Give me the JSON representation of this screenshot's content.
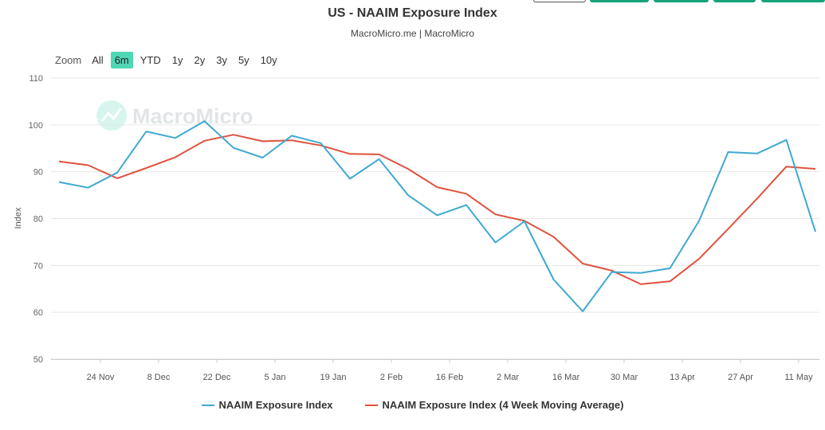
{
  "header": {
    "title": "US - NAAIM Exposure Index",
    "subtitle": "MacroMicro.me | MacroMicro"
  },
  "watermark": "MacroMicro",
  "range_selector": {
    "zoom_label": "Zoom",
    "buttons": [
      "All",
      "6m",
      "YTD",
      "1y",
      "2y",
      "3y",
      "5y",
      "10y"
    ],
    "active": "6m"
  },
  "colors": {
    "series1": "#3ea9d1",
    "series2": "#e0523e",
    "accent": "#4fd6b4",
    "grid": "#e6e6e6"
  },
  "chart_data": {
    "type": "line",
    "title": "US - NAAIM Exposure Index",
    "subtitle": "MacroMicro.me | MacroMicro",
    "ylabel": "Index",
    "xlabel": "",
    "ylim": [
      50,
      110
    ],
    "yticks": [
      50,
      60,
      70,
      80,
      90,
      100,
      110
    ],
    "x_ticks": [
      "24 Nov",
      "8 Dec",
      "22 Dec",
      "5 Jan",
      "19 Jan",
      "2 Feb",
      "16 Feb",
      "2 Mar",
      "16 Mar",
      "30 Mar",
      "13 Apr",
      "27 Apr",
      "11 May"
    ],
    "grid": true,
    "legend_position": "bottom",
    "x": [
      "Nov 10",
      "Nov 17",
      "Nov 24",
      "Dec 1",
      "Dec 8",
      "Dec 15",
      "Dec 22",
      "Dec 29",
      "Jan 5",
      "Jan 12",
      "Jan 19",
      "Jan 26",
      "Feb 2",
      "Feb 9",
      "Feb 16",
      "Feb 23",
      "Mar 2",
      "Mar 9",
      "Mar 16",
      "Mar 23",
      "Mar 30",
      "Apr 6",
      "Apr 13",
      "Apr 20",
      "Apr 27",
      "May 4",
      "May 11"
    ],
    "series": [
      {
        "name": "NAAIM Exposure Index",
        "values": [
          87.8,
          86.6,
          89.8,
          98.6,
          97.2,
          100.8,
          95.1,
          93.0,
          97.7,
          96.1,
          88.5,
          92.7,
          85.0,
          80.7,
          82.9,
          74.9,
          79.4,
          67.0,
          60.2,
          68.6,
          68.4,
          69.4,
          79.5,
          94.2,
          93.9,
          96.8,
          77.2
        ]
      },
      {
        "name": "NAAIM Exposure Index (4 Week Moving Average)",
        "values": [
          92.2,
          91.4,
          88.6,
          90.8,
          93.1,
          96.6,
          97.9,
          96.5,
          96.7,
          95.6,
          93.8,
          93.7,
          90.6,
          86.7,
          85.3,
          80.9,
          79.5,
          76.1,
          70.4,
          68.9,
          66.0,
          66.6,
          71.4,
          77.8,
          84.3,
          91.1,
          90.6
        ]
      }
    ]
  }
}
